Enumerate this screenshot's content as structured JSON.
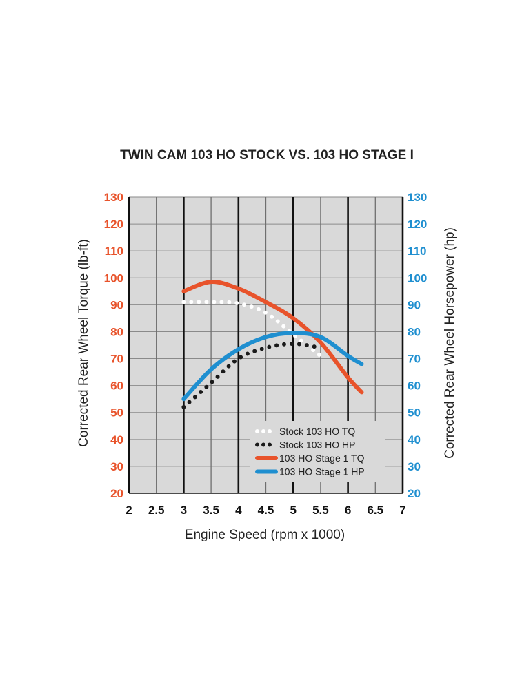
{
  "chart_data": {
    "type": "line",
    "title": "TWIN CAM 103 HO STOCK VS. 103 HO STAGE I",
    "xlabel": "Engine Speed (rpm x 1000)",
    "ylabel_left": "Corrected Rear Wheel Torque (lb-ft)",
    "ylabel_right": "Corrected Rear Wheel Horsepower (hp)",
    "xlim": [
      2,
      7
    ],
    "ylim": [
      20,
      130
    ],
    "x_ticks": [
      "2",
      "2.5",
      "3",
      "3.5",
      "4",
      "4.5",
      "5",
      "5.5",
      "6",
      "6.5",
      "7"
    ],
    "y_ticks": [
      "20",
      "30",
      "40",
      "50",
      "60",
      "70",
      "80",
      "90",
      "100",
      "110",
      "120",
      "130"
    ],
    "grid": true,
    "legend_position": "bottom-right",
    "colors": {
      "torque_axis": "#e8532b",
      "hp_axis": "#1f8fd0",
      "plot_bg": "#d9d9d9"
    },
    "series": [
      {
        "name": "Stock 103 HO TQ",
        "color": "#ffffff",
        "style": "dotted",
        "x": [
          3.0,
          3.5,
          4.0,
          4.5,
          5.0,
          5.5
        ],
        "y": [
          91,
          91,
          90.5,
          87,
          79,
          71
        ]
      },
      {
        "name": "Stock 103 HO HP",
        "color": "#1a1a1a",
        "style": "dotted",
        "x": [
          3.0,
          3.5,
          4.0,
          4.5,
          5.0,
          5.5
        ],
        "y": [
          52,
          61,
          70,
          74,
          75.5,
          74
        ]
      },
      {
        "name": "103 HO Stage 1 TQ",
        "color": "#e8532b",
        "style": "solid",
        "x": [
          3.0,
          3.5,
          4.0,
          4.5,
          5.0,
          5.5,
          6.0,
          6.25
        ],
        "y": [
          95,
          98.5,
          96,
          91,
          85,
          76,
          63,
          57.5
        ]
      },
      {
        "name": "103 HO Stage 1 HP",
        "color": "#1f8fd0",
        "style": "solid",
        "x": [
          3.0,
          3.5,
          4.0,
          4.5,
          5.0,
          5.5,
          6.0,
          6.25
        ],
        "y": [
          55,
          66,
          73.5,
          78,
          79.5,
          78,
          71,
          68
        ]
      }
    ]
  }
}
